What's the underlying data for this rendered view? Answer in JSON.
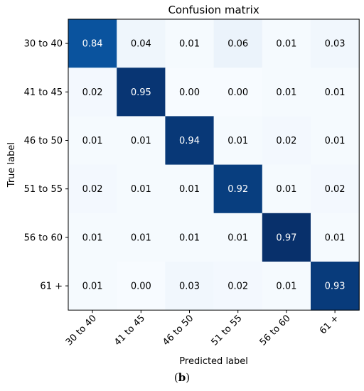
{
  "chart_data": {
    "type": "heatmap",
    "title": "Confusion matrix",
    "xlabel": "Predicted label",
    "ylabel": "True label",
    "x_categories": [
      "30 to 40",
      "41 to 45",
      "46 to 50",
      "51 to 55",
      "56 to 60",
      "61 +"
    ],
    "y_categories": [
      "30 to 40",
      "41 to 45",
      "46 to 50",
      "51 to 55",
      "56 to 60",
      "61 +"
    ],
    "values": [
      [
        0.84,
        0.04,
        0.01,
        0.06,
        0.01,
        0.03
      ],
      [
        0.02,
        0.95,
        0.0,
        0.0,
        0.01,
        0.01
      ],
      [
        0.01,
        0.01,
        0.94,
        0.01,
        0.02,
        0.01
      ],
      [
        0.02,
        0.01,
        0.01,
        0.92,
        0.01,
        0.02
      ],
      [
        0.01,
        0.01,
        0.01,
        0.01,
        0.97,
        0.01
      ],
      [
        0.01,
        0.0,
        0.03,
        0.02,
        0.01,
        0.93
      ]
    ],
    "value_range": [
      0,
      0.97
    ],
    "colormap": "Blues",
    "colors": {
      "low": "#f7fbff",
      "mid": "#6baed6",
      "high": "#08306b"
    }
  },
  "caption": {
    "open": "(",
    "letter": "b",
    "close": ")"
  }
}
